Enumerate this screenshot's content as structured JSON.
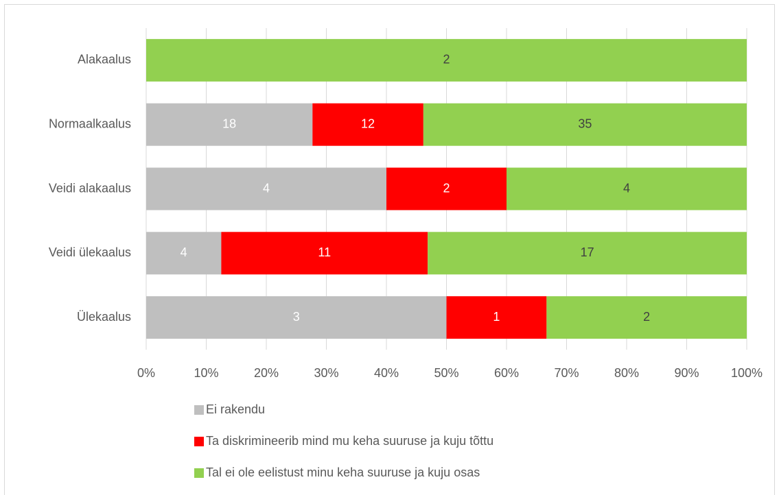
{
  "chart_data": {
    "type": "bar",
    "orientation": "horizontal",
    "stacking": "percent",
    "categories": [
      "Alakaalus",
      "Normaalkaalus",
      "Veidi alakaalus",
      "Veidi ülekaalus",
      "Ülekaalus"
    ],
    "series": [
      {
        "name": "Ei rakendu",
        "color": "#bfbfbf",
        "label_color": "#ffffff",
        "values": [
          null,
          18,
          4,
          4,
          3
        ]
      },
      {
        "name": "Ta diskrimineerib mind mu keha suuruse ja kuju tõttu",
        "color": "#ff0000",
        "label_color": "#ffffff",
        "values": [
          null,
          12,
          2,
          11,
          1
        ]
      },
      {
        "name": "Tal ei ole eelistust minu keha suuruse ja kuju osas",
        "color": "#92d050",
        "label_color": "#404040",
        "values": [
          2,
          35,
          4,
          17,
          2
        ]
      }
    ],
    "xlim": [
      0,
      100
    ],
    "xticks": [
      {
        "value": 0,
        "label": "0%"
      },
      {
        "value": 10,
        "label": "10%"
      },
      {
        "value": 20,
        "label": "20%"
      },
      {
        "value": 30,
        "label": "30%"
      },
      {
        "value": 40,
        "label": "40%"
      },
      {
        "value": 50,
        "label": "50%"
      },
      {
        "value": 60,
        "label": "60%"
      },
      {
        "value": 70,
        "label": "70%"
      },
      {
        "value": 80,
        "label": "80%"
      },
      {
        "value": 90,
        "label": "90%"
      },
      {
        "value": 100,
        "label": "100%"
      }
    ],
    "grid": true,
    "legend": "bottom"
  }
}
